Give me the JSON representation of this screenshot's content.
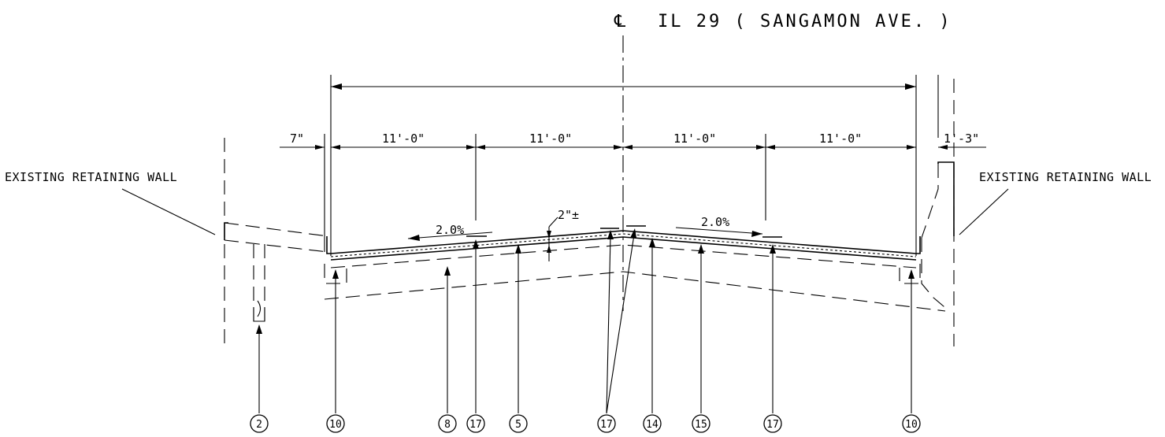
{
  "title": {
    "symbol": "℄",
    "text": "IL 29 ( SANGAMON AVE. )"
  },
  "labels": {
    "wall_left": "EXISTING RETAINING WALL",
    "wall_right": "EXISTING RETAINING WALL"
  },
  "dimensions": {
    "curb_left": "7\"",
    "lane_1": "11'-0\"",
    "lane_2": "11'-0\"",
    "lane_3": "11'-0\"",
    "lane_4": "11'-0\"",
    "right_offset": "1'-3\"",
    "overlay_thickness": "2\"±"
  },
  "slopes": {
    "left": "2.0%",
    "right": "2.0%"
  },
  "callouts": [
    "2",
    "10",
    "8",
    "17",
    "5",
    "17",
    "14",
    "15",
    "17",
    "10"
  ]
}
